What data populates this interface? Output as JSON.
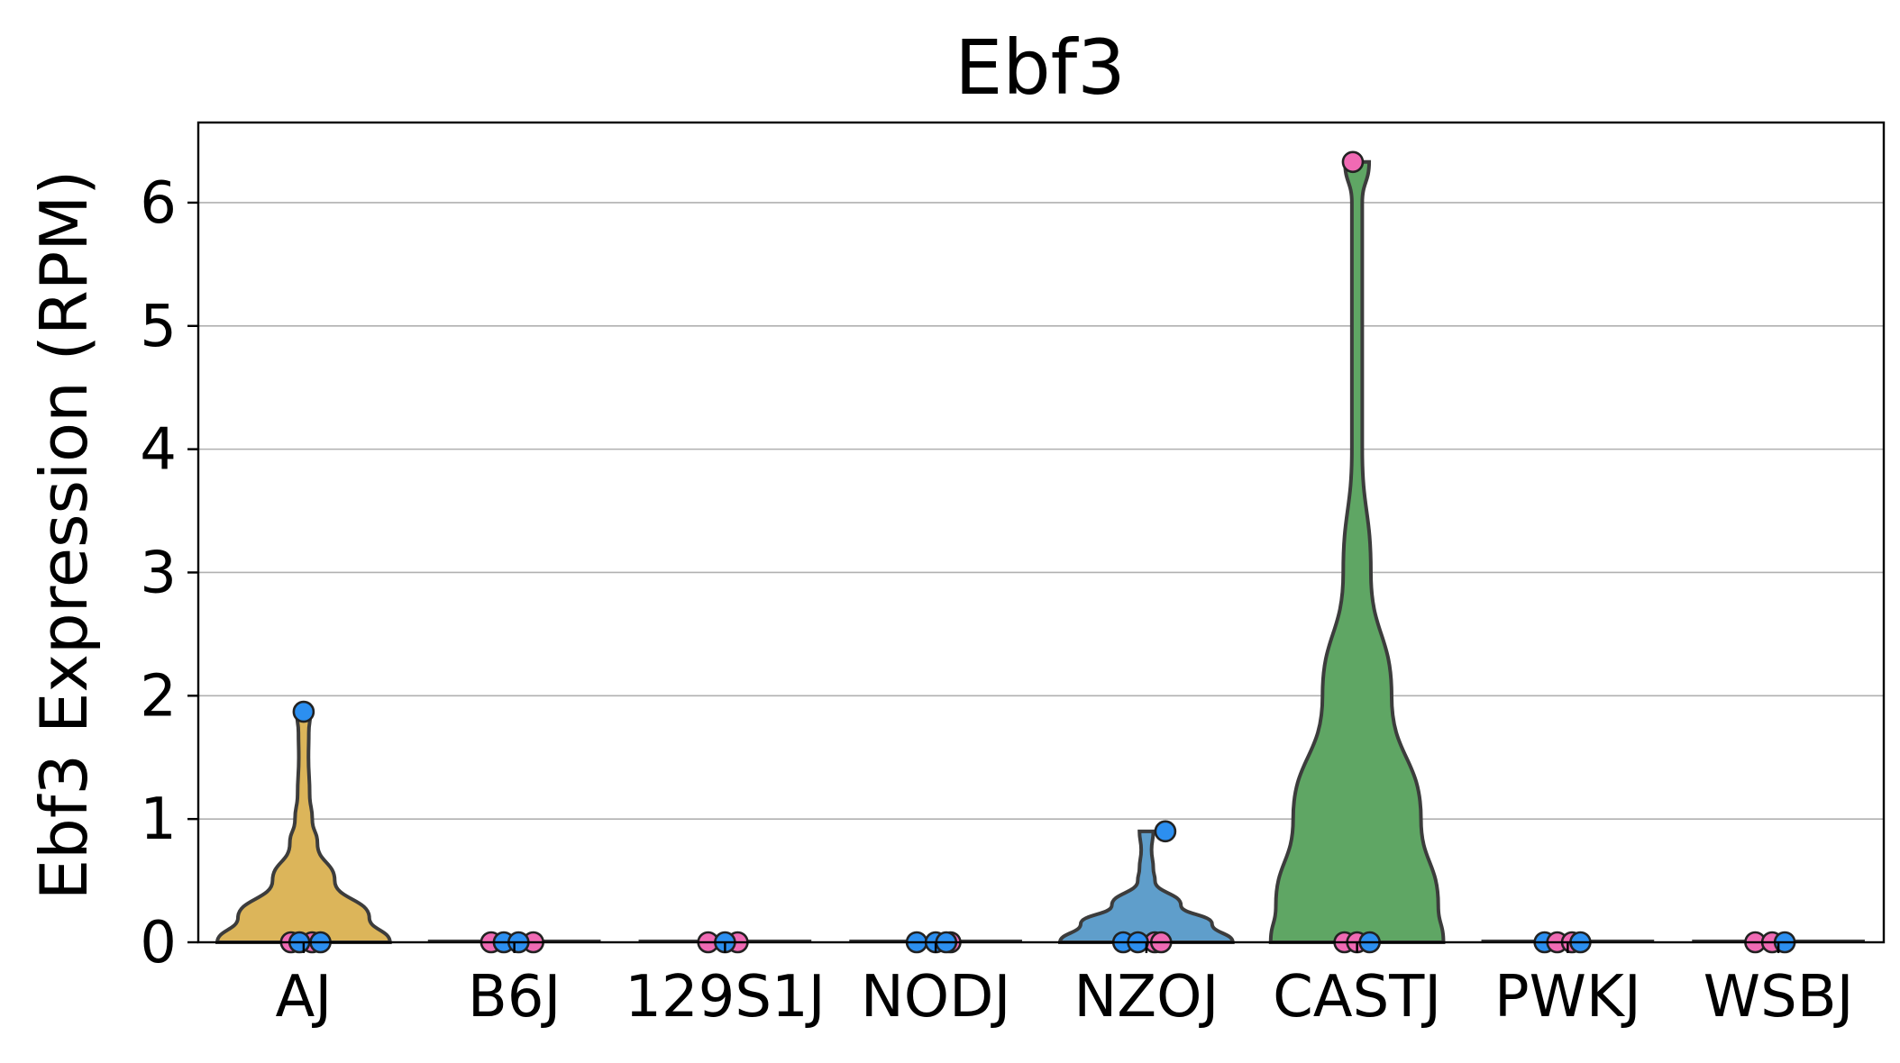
{
  "chart_data": {
    "type": "violin",
    "title": "Ebf3",
    "xlabel": "",
    "ylabel": "Ebf3 Expression (RPM)",
    "ylim": [
      0,
      6.65
    ],
    "yticks": [
      "0",
      "1",
      "2",
      "3",
      "4",
      "5",
      "6"
    ],
    "grid": "horizontal",
    "categories": [
      "AJ",
      "B6J",
      "129S1J",
      "NODJ",
      "NZOJ",
      "CASTJ",
      "PWKJ",
      "WSBJ"
    ],
    "colors": [
      "#dcb55a",
      "#6a9ad0",
      "#a0a0a0",
      "#b0b0b0",
      "#5f9ecb",
      "#5fa664",
      "#b07ad0",
      "#a0a0a0"
    ],
    "point_colors": {
      "female": "#f06ab4",
      "male": "#2c8ff0"
    },
    "violins": [
      {
        "category": "AJ",
        "min": 0,
        "max": 1.87,
        "profile": [
          [
            0,
            0.5
          ],
          [
            0.2,
            0.38
          ],
          [
            0.5,
            0.18
          ],
          [
            0.8,
            0.08
          ],
          [
            1.0,
            0.05
          ],
          [
            1.2,
            0.035
          ],
          [
            1.5,
            0.028
          ],
          [
            1.7,
            0.03
          ],
          [
            1.87,
            0.04
          ]
        ]
      },
      {
        "category": "B6J",
        "min": 0,
        "max": 0,
        "profile": []
      },
      {
        "category": "129S1J",
        "min": 0,
        "max": 0,
        "profile": []
      },
      {
        "category": "NODJ",
        "min": 0,
        "max": 0,
        "profile": []
      },
      {
        "category": "NZOJ",
        "min": 0,
        "max": 0.9,
        "profile": [
          [
            0,
            0.5
          ],
          [
            0.15,
            0.38
          ],
          [
            0.3,
            0.2
          ],
          [
            0.5,
            0.05
          ],
          [
            0.6,
            0.04
          ],
          [
            0.75,
            0.03
          ],
          [
            0.9,
            0.04
          ]
        ]
      },
      {
        "category": "CASTJ",
        "min": 0,
        "max": 6.33,
        "profile": [
          [
            0,
            0.5
          ],
          [
            0.3,
            0.47
          ],
          [
            1.0,
            0.37
          ],
          [
            2.0,
            0.2
          ],
          [
            3.0,
            0.08
          ],
          [
            4.0,
            0.03
          ],
          [
            5.0,
            0.03
          ],
          [
            6.0,
            0.03
          ],
          [
            6.33,
            0.07
          ]
        ]
      },
      {
        "category": "PWKJ",
        "min": 0,
        "max": 0,
        "profile": []
      },
      {
        "category": "WSBJ",
        "min": 0,
        "max": 0,
        "profile": []
      }
    ],
    "points": [
      {
        "category": "AJ",
        "value": 1.87,
        "group": "male",
        "offset": 0.0
      },
      {
        "category": "AJ",
        "value": 0,
        "group": "female",
        "offset": -0.06
      },
      {
        "category": "AJ",
        "value": 0,
        "group": "female",
        "offset": 0.04
      },
      {
        "category": "AJ",
        "value": 0,
        "group": "male",
        "offset": 0.08
      },
      {
        "category": "AJ",
        "value": 0,
        "group": "male",
        "offset": -0.02
      },
      {
        "category": "B6J",
        "value": 0,
        "group": "female",
        "offset": -0.11
      },
      {
        "category": "B6J",
        "value": 0,
        "group": "female",
        "offset": 0.09
      },
      {
        "category": "B6J",
        "value": 0,
        "group": "male",
        "offset": -0.05
      },
      {
        "category": "B6J",
        "value": 0,
        "group": "male",
        "offset": 0.02
      },
      {
        "category": "129S1J",
        "value": 0,
        "group": "female",
        "offset": -0.08
      },
      {
        "category": "129S1J",
        "value": 0,
        "group": "female",
        "offset": 0.06
      },
      {
        "category": "129S1J",
        "value": 0,
        "group": "male",
        "offset": 0.0
      },
      {
        "category": "NODJ",
        "value": 0,
        "group": "male",
        "offset": -0.09
      },
      {
        "category": "NODJ",
        "value": 0,
        "group": "female",
        "offset": 0.07
      },
      {
        "category": "NODJ",
        "value": 0,
        "group": "male",
        "offset": 0.0
      },
      {
        "category": "NODJ",
        "value": 0,
        "group": "male",
        "offset": 0.05
      },
      {
        "category": "NZOJ",
        "value": 0.9,
        "group": "male",
        "offset": 0.09
      },
      {
        "category": "NZOJ",
        "value": 0,
        "group": "male",
        "offset": -0.11
      },
      {
        "category": "NZOJ",
        "value": 0,
        "group": "female",
        "offset": 0.04
      },
      {
        "category": "NZOJ",
        "value": 0,
        "group": "male",
        "offset": -0.04
      },
      {
        "category": "NZOJ",
        "value": 0,
        "group": "female",
        "offset": 0.07
      },
      {
        "category": "CASTJ",
        "value": 6.33,
        "group": "female",
        "offset": -0.02
      },
      {
        "category": "CASTJ",
        "value": 0,
        "group": "female",
        "offset": -0.06
      },
      {
        "category": "CASTJ",
        "value": 0,
        "group": "female",
        "offset": 0.0
      },
      {
        "category": "CASTJ",
        "value": 0,
        "group": "male",
        "offset": 0.06
      },
      {
        "category": "PWKJ",
        "value": 0,
        "group": "male",
        "offset": -0.11
      },
      {
        "category": "PWKJ",
        "value": 0,
        "group": "female",
        "offset": -0.05
      },
      {
        "category": "PWKJ",
        "value": 0,
        "group": "female",
        "offset": 0.02
      },
      {
        "category": "PWKJ",
        "value": 0,
        "group": "male",
        "offset": 0.06
      },
      {
        "category": "WSBJ",
        "value": 0,
        "group": "female",
        "offset": -0.11
      },
      {
        "category": "WSBJ",
        "value": 0,
        "group": "female",
        "offset": -0.03
      },
      {
        "category": "WSBJ",
        "value": 0,
        "group": "male",
        "offset": 0.03
      }
    ]
  }
}
